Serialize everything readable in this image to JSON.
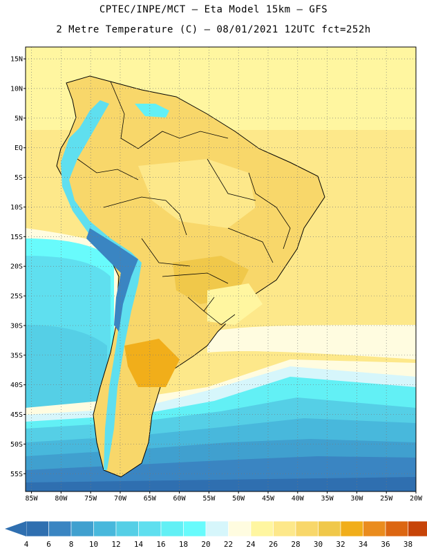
{
  "header": {
    "line1": "CPTEC/INPE/MCT –  Eta Model 15km – GFS",
    "line2": "2 Metre Temperature (C) – 08/01/2021 12UTC fct=252h"
  },
  "map": {
    "lat_labels": [
      "15N",
      "10N",
      "5N",
      "EQ",
      "5S",
      "10S",
      "15S",
      "20S",
      "25S",
      "30S",
      "35S",
      "40S",
      "45S",
      "50S",
      "55S"
    ],
    "lon_labels": [
      "85W",
      "80W",
      "75W",
      "70W",
      "65W",
      "60W",
      "55W",
      "50W",
      "45W",
      "40W",
      "35W",
      "30W",
      "25W",
      "20W"
    ],
    "lat_range": [
      17,
      -58
    ],
    "lon_range": [
      -86,
      -20
    ]
  },
  "colorbar": {
    "values": [
      "4",
      "6",
      "8",
      "10",
      "12",
      "14",
      "16",
      "18",
      "20",
      "22",
      "24",
      "26",
      "28",
      "30",
      "32",
      "34",
      "36",
      "38"
    ],
    "colors": [
      "#2f6fb0",
      "#3a85c2",
      "#40a0cf",
      "#48b8dc",
      "#55cfe6",
      "#5fdfef",
      "#62f0f5",
      "#68fbfc",
      "#d6f6fb",
      "#fffce0",
      "#fff6a0",
      "#fde88a",
      "#f8d76a",
      "#f0c84a",
      "#f1ae1a",
      "#ea8c1e",
      "#dc6612",
      "#c74408",
      "#b23a12"
    ],
    "low_arrow_color": "#2f6fb0",
    "high_arrow_color": "#b23a12"
  }
}
